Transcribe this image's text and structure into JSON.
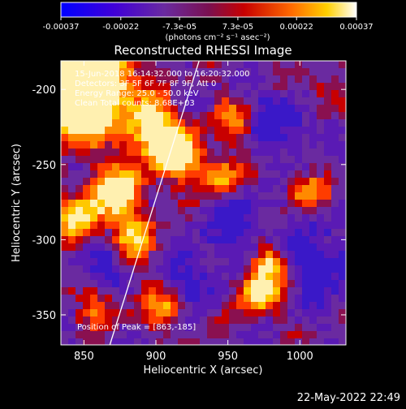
{
  "colorbar": {
    "tick_labels": [
      "-0.00037",
      "-0.00022",
      "-7.3e-05",
      "7.3e-05",
      "0.00022",
      "0.00037"
    ],
    "tick_values": [
      -0.00037,
      -0.00022,
      -7.3e-05,
      7.3e-05,
      0.00022,
      0.00037
    ],
    "range": [
      -0.00037,
      0.00037
    ],
    "unit_label": "(photons cm⁻² s⁻¹ asec⁻²)",
    "colors": [
      "#0000ff",
      "#5b00c8",
      "#6a2aa0",
      "#c80000",
      "#ff6a00",
      "#ffd000",
      "#ffffff"
    ]
  },
  "chart_data": {
    "type": "heatmap",
    "title": "Reconstructed RHESSI Image",
    "xlabel": "Heliocentric X (arcsec)",
    "ylabel": "Heliocentric Y (arcsec)",
    "xlim": [
      834,
      1032
    ],
    "ylim": [
      -370,
      -181
    ],
    "x_ticks": [
      850,
      900,
      950,
      1000
    ],
    "y_ticks": [
      -200,
      -250,
      -300,
      -350
    ],
    "limb_line": [
      [
        868,
        -370
      ],
      [
        930,
        -181
      ]
    ],
    "annotations": [
      "15-Jun-2018 16:14:32.000 to 16:20:32.000",
      "Detectors: 3F 5F 6F 7F 8F 9F, Att 0",
      "Energy Range: 25.0 - 50.0 keV",
      "Clean        Total counts: 8.68E+03"
    ],
    "peak_label": "Position of Peak = [863,-185]"
  },
  "footer": {
    "timestamp": "22-May-2022 22:49"
  }
}
